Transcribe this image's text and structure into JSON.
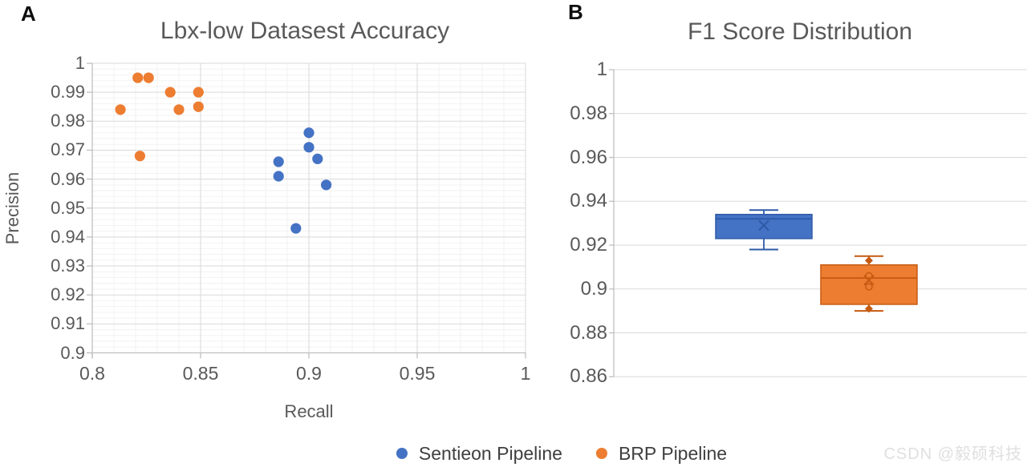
{
  "figure": {
    "panel_a_label": "A",
    "panel_b_label": "B",
    "watermark": "CSDN @毅硕科技"
  },
  "colors": {
    "blue": "#4472C4",
    "blue_edge": "#2E5AA7",
    "orange": "#ED7D31",
    "orange_edge": "#C55A11",
    "axis_line": "#BFBFBF",
    "grid_major": "#D9D9D9",
    "grid_minor": "#F2F2F2",
    "tick_text": "#595959",
    "legend_text": "#3F3F3F",
    "watermark_text": "#DFDFDF"
  },
  "legend": {
    "items": [
      {
        "label": "Sentieon Pipeline",
        "color": "#4472C4"
      },
      {
        "label": "BRP Pipeline",
        "color": "#ED7D31"
      }
    ]
  },
  "chart_data": [
    {
      "id": "panel_a",
      "type": "scatter",
      "title": "Lbx-low Datasest Accuracy",
      "xlabel": "Recall",
      "ylabel": "Precision",
      "xlim": [
        0.8,
        1.0
      ],
      "ylim": [
        0.9,
        1.0
      ],
      "grid": "major-and-minor",
      "minor_x_step": 0.01,
      "minor_y_step": 0.002,
      "x_ticks": [
        {
          "v": 0.8,
          "label": "0.8"
        },
        {
          "v": 0.85,
          "label": "0.85"
        },
        {
          "v": 0.9,
          "label": "0.9"
        },
        {
          "v": 0.95,
          "label": "0.95"
        },
        {
          "v": 1.0,
          "label": "1"
        }
      ],
      "y_ticks": [
        {
          "v": 1.0,
          "label": "1"
        },
        {
          "v": 0.99,
          "label": "0.99"
        },
        {
          "v": 0.98,
          "label": "0.98"
        },
        {
          "v": 0.97,
          "label": "0.97"
        },
        {
          "v": 0.96,
          "label": "0.96"
        },
        {
          "v": 0.95,
          "label": "0.95"
        },
        {
          "v": 0.94,
          "label": "0.94"
        },
        {
          "v": 0.93,
          "label": "0.93"
        },
        {
          "v": 0.92,
          "label": "0.92"
        },
        {
          "v": 0.91,
          "label": "0.91"
        },
        {
          "v": 0.9,
          "label": "0.9"
        }
      ],
      "series": [
        {
          "name": "Sentieon Pipeline",
          "color": "#4472C4",
          "points": [
            [
              0.9,
              0.976
            ],
            [
              0.9,
              0.971
            ],
            [
              0.904,
              0.967
            ],
            [
              0.886,
              0.966
            ],
            [
              0.886,
              0.961
            ],
            [
              0.908,
              0.958
            ],
            [
              0.894,
              0.943
            ]
          ]
        },
        {
          "name": "BRP Pipeline",
          "color": "#ED7D31",
          "points": [
            [
              0.821,
              0.995
            ],
            [
              0.826,
              0.995
            ],
            [
              0.836,
              0.99
            ],
            [
              0.849,
              0.99
            ],
            [
              0.813,
              0.984
            ],
            [
              0.84,
              0.984
            ],
            [
              0.849,
              0.985
            ],
            [
              0.822,
              0.968
            ]
          ]
        }
      ],
      "legend_position": "bottom"
    },
    {
      "id": "panel_b",
      "type": "box",
      "title": "F1 Score Distribution",
      "ylim": [
        0.86,
        1.0
      ],
      "grid": "major-horizontal",
      "y_ticks": [
        {
          "v": 1.0,
          "label": "1"
        },
        {
          "v": 0.98,
          "label": "0.98"
        },
        {
          "v": 0.96,
          "label": "0.96"
        },
        {
          "v": 0.94,
          "label": "0.94"
        },
        {
          "v": 0.92,
          "label": "0.92"
        },
        {
          "v": 0.9,
          "label": "0.9"
        },
        {
          "v": 0.88,
          "label": "0.88"
        },
        {
          "v": 0.86,
          "label": "0.86"
        }
      ],
      "series": [
        {
          "name": "Sentieon Pipeline",
          "color": "#4472C4",
          "edge": "#2E5AA7",
          "whisker_low": 0.918,
          "q1": 0.923,
          "median": 0.932,
          "q3": 0.934,
          "whisker_high": 0.936,
          "mean": 0.929,
          "outliers": [],
          "inner_points": []
        },
        {
          "name": "BRP Pipeline",
          "color": "#ED7D31",
          "edge": "#C55A11",
          "whisker_low": 0.89,
          "q1": 0.893,
          "median": 0.905,
          "q3": 0.911,
          "whisker_high": 0.915,
          "mean": 0.904,
          "outliers": [
            0.913,
            0.891
          ],
          "inner_points": [
            0.906,
            0.901
          ]
        }
      ]
    }
  ]
}
